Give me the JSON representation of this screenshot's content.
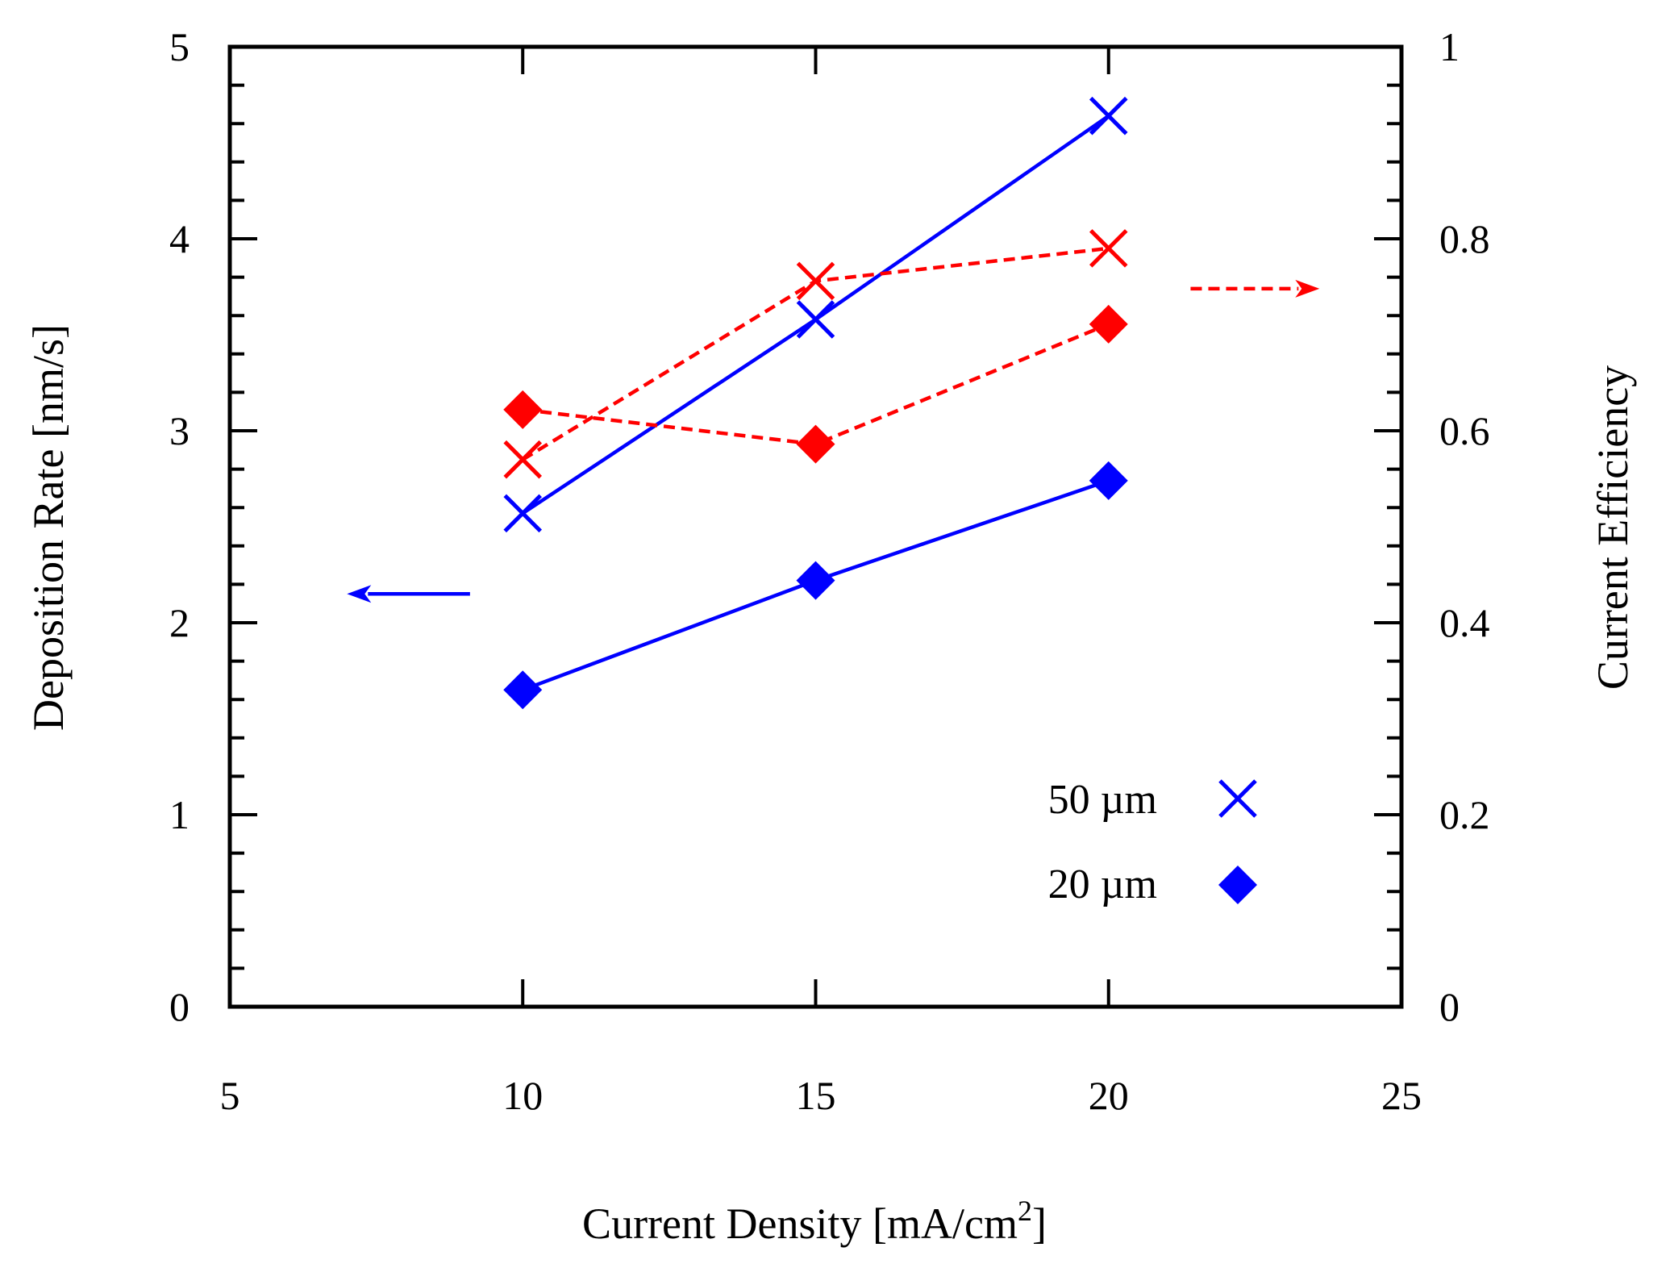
{
  "chart_data": {
    "type": "line",
    "title": "",
    "xlabel_main": "Current Density [mA/cm",
    "xlabel_sup": "2",
    "xlabel_end": "]",
    "ylabel": "Deposition Rate [nm/s]",
    "y2label": "Current Efficiency",
    "xlim": [
      5,
      25
    ],
    "ylim": [
      0,
      5
    ],
    "y2lim": [
      0,
      1
    ],
    "x_ticks": [
      "5",
      "10",
      "15",
      "20",
      "25"
    ],
    "y_ticks": [
      "0",
      "1",
      "2",
      "3",
      "4",
      "5"
    ],
    "y2_ticks": [
      "0",
      "0.2",
      "0.4",
      "0.6",
      "0.8",
      "1"
    ],
    "grid": false,
    "colors": {
      "rate": "#0000ff",
      "efficiency": "#ff0000",
      "axis": "#000000"
    },
    "series": [
      {
        "name": "50 µm deposition rate",
        "axis": "left",
        "marker": "x",
        "line": "solid",
        "color": "#0000ff",
        "x": [
          10,
          15,
          20
        ],
        "values": [
          2.57,
          3.58,
          4.64
        ]
      },
      {
        "name": "20 µm deposition rate",
        "axis": "left",
        "marker": "diamond",
        "line": "solid",
        "color": "#0000ff",
        "x": [
          10,
          15,
          20
        ],
        "values": [
          1.65,
          2.22,
          2.74
        ]
      },
      {
        "name": "50 µm current efficiency",
        "axis": "right",
        "marker": "x",
        "line": "dashed",
        "color": "#ff0000",
        "x": [
          10,
          15,
          20
        ],
        "values": [
          0.57,
          0.756,
          0.79
        ]
      },
      {
        "name": "20 µm current efficiency",
        "axis": "right",
        "marker": "diamond",
        "line": "dashed",
        "color": "#ff0000",
        "x": [
          10,
          15,
          20
        ],
        "values": [
          0.622,
          0.586,
          0.711
        ]
      }
    ],
    "legend": {
      "placement": "bottom-right",
      "entries": [
        {
          "label": "50 µm",
          "marker": "x"
        },
        {
          "label": "20 µm",
          "marker": "diamond"
        }
      ]
    },
    "annotations": [
      {
        "type": "arrow",
        "direction": "left",
        "points_to": "left axis",
        "color": "#0000ff",
        "style": "solid",
        "from": [
          9.1,
          2.15
        ],
        "to": [
          7.0,
          2.15
        ],
        "axis": "left"
      },
      {
        "type": "arrow",
        "direction": "right",
        "points_to": "right axis",
        "color": "#ff0000",
        "style": "dashed",
        "from": [
          21.4,
          0.748
        ],
        "to": [
          23.6,
          0.748
        ],
        "axis": "right"
      }
    ]
  }
}
